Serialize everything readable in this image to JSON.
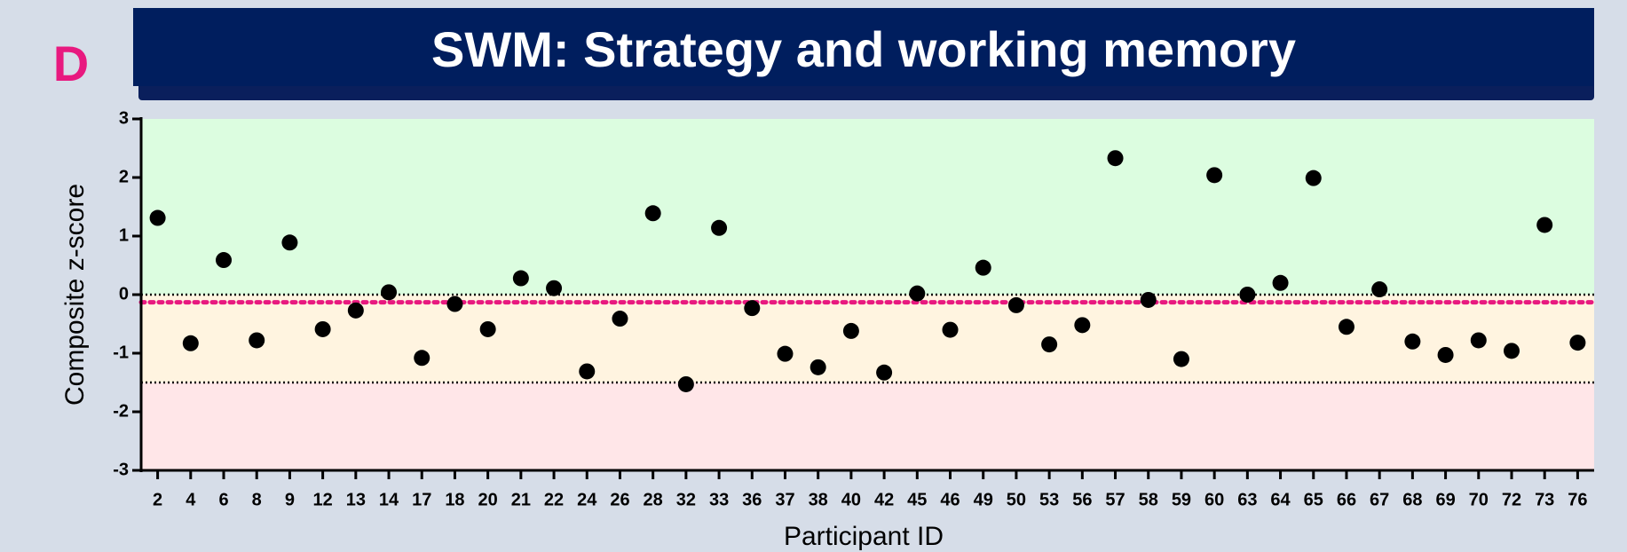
{
  "chart_data": {
    "type": "scatter",
    "panel_label": "D",
    "title": "SWM: Strategy and working memory",
    "x_label": "Participant ID",
    "y_label": "Composite z-score",
    "categories": [
      "2",
      "4",
      "6",
      "8",
      "9",
      "12",
      "13",
      "14",
      "17",
      "18",
      "20",
      "21",
      "22",
      "24",
      "26",
      "28",
      "32",
      "33",
      "36",
      "37",
      "38",
      "40",
      "42",
      "45",
      "46",
      "49",
      "50",
      "53",
      "56",
      "57",
      "58",
      "59",
      "60",
      "63",
      "64",
      "65",
      "66",
      "67",
      "68",
      "69",
      "70",
      "72",
      "73",
      "76"
    ],
    "values": [
      1.31,
      -0.83,
      0.59,
      -0.78,
      0.89,
      -0.59,
      -0.27,
      0.04,
      -1.08,
      -0.16,
      -0.59,
      0.28,
      0.11,
      -1.31,
      -0.41,
      1.39,
      -1.53,
      1.14,
      -0.23,
      -1.01,
      -1.24,
      -0.62,
      -1.33,
      0.02,
      -0.6,
      0.46,
      -0.18,
      -0.85,
      -0.52,
      2.33,
      -0.09,
      -1.1,
      2.04,
      0.0,
      0.2,
      1.99,
      -0.55,
      0.09,
      -0.8,
      -1.03,
      -0.78,
      -0.96,
      1.19,
      -0.82
    ],
    "color": "#000000",
    "ylim": [
      -3,
      3
    ],
    "yticks": [
      -3,
      -2,
      -1,
      0,
      1,
      2,
      3
    ],
    "bands": [
      {
        "from": 0,
        "to": 3,
        "color": "#dcfde0"
      },
      {
        "from": -1.5,
        "to": 0,
        "color": "#fff4e0"
      },
      {
        "from": -3,
        "to": -1.5,
        "color": "#ffe6e8"
      }
    ],
    "reference_lines": [
      {
        "value": 0,
        "color": "#000000"
      },
      {
        "value": -1.5,
        "color": "#000000"
      },
      {
        "value": -0.13,
        "color": "#e8197f"
      }
    ]
  }
}
